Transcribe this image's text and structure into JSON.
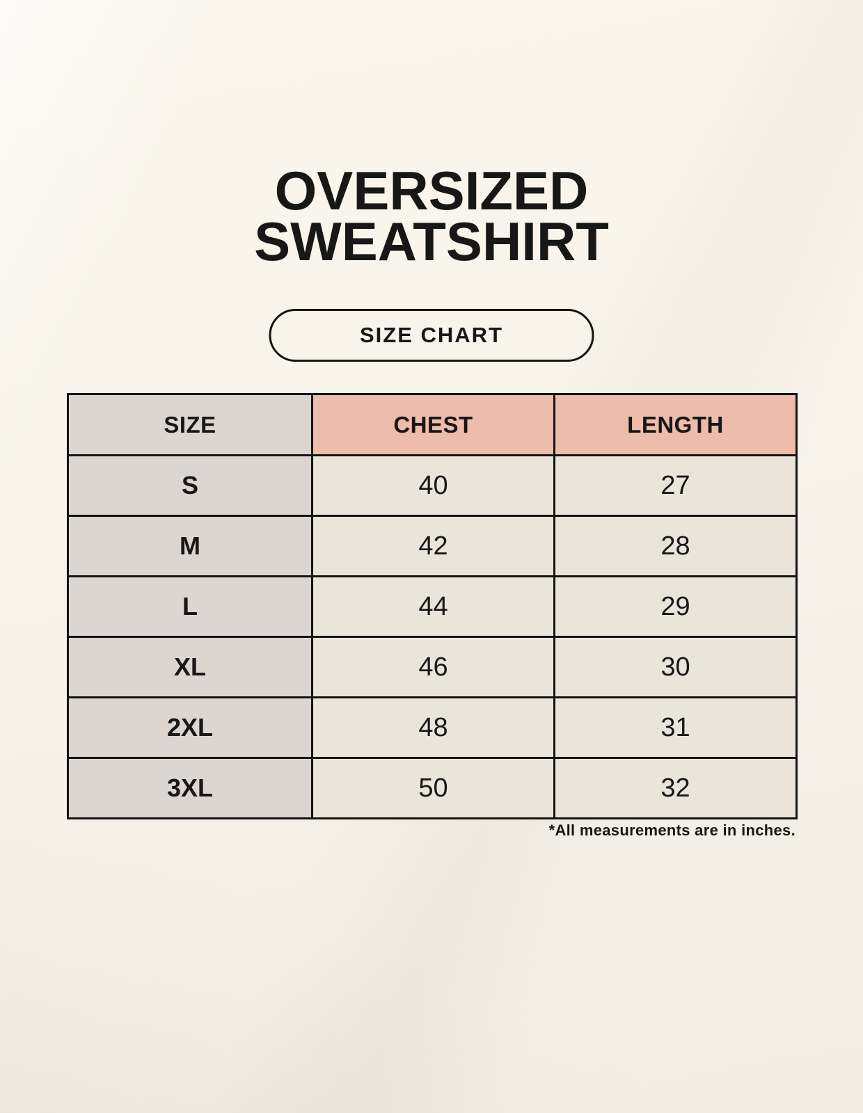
{
  "header": {
    "title_line1": "OVERSIZED",
    "title_line2": "SWEATSHIRT",
    "badge_label": "SIZE CHART"
  },
  "table": {
    "headers": [
      "SIZE",
      "CHEST",
      "LENGTH"
    ],
    "rows": [
      [
        "S",
        "40",
        "27"
      ],
      [
        "M",
        "42",
        "28"
      ],
      [
        "L",
        "44",
        "29"
      ],
      [
        "XL",
        "46",
        "30"
      ],
      [
        "2XL",
        "48",
        "31"
      ],
      [
        "3XL",
        "50",
        "32"
      ]
    ]
  },
  "footnote": "*All measurements are in inches.",
  "chart_data": {
    "type": "table",
    "title": "OVERSIZED SWEATSHIRT SIZE CHART",
    "columns": [
      "SIZE",
      "CHEST",
      "LENGTH"
    ],
    "rows": [
      {
        "size": "S",
        "chest": 40,
        "length": 27
      },
      {
        "size": "M",
        "chest": 42,
        "length": 28
      },
      {
        "size": "L",
        "chest": 44,
        "length": 29
      },
      {
        "size": "XL",
        "chest": 46,
        "length": 30
      },
      {
        "size": "2XL",
        "chest": 48,
        "length": 31
      },
      {
        "size": "3XL",
        "chest": 50,
        "length": 32
      }
    ],
    "units": "inches"
  },
  "colors": {
    "bg_top": "#faf6ee",
    "bg_bottom": "#f0ece4",
    "taupe": "#ddd5cf",
    "salmon": "#eebcab",
    "cream": "#ebe4d9",
    "line": "#141414",
    "ink": "#171717"
  }
}
